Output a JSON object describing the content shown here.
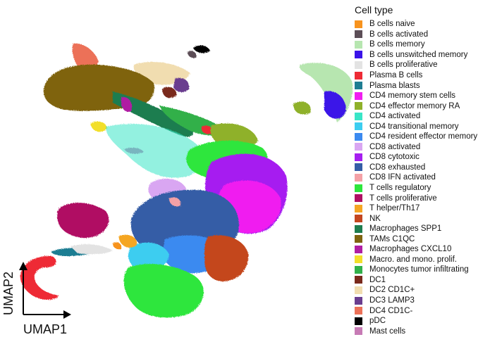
{
  "chart_data": {
    "type": "scatter",
    "title": "",
    "xlabel": "UMAP1",
    "ylabel": "UMAP2",
    "axis_ticks": "none",
    "grid": false,
    "legend_title": "Cell type",
    "legend_position": "right",
    "series": [
      {
        "name": "B cells naive",
        "color": "#f7931e"
      },
      {
        "name": "B cells activated",
        "color": "#5c4e57"
      },
      {
        "name": "B cells memory",
        "color": "#b7e6b0"
      },
      {
        "name": "B cells unswitched memory",
        "color": "#3a12e8"
      },
      {
        "name": "B cells proliferative",
        "color": "#e3e3e3"
      },
      {
        "name": "Plasma B cells",
        "color": "#ee2b35"
      },
      {
        "name": "Plasma blasts",
        "color": "#1f7d92"
      },
      {
        "name": "CD4 memory stem cells",
        "color": "#f01ef0"
      },
      {
        "name": "CD4 effector memory RA",
        "color": "#8fb12a"
      },
      {
        "name": "CD4 activated",
        "color": "#39e5c7"
      },
      {
        "name": "CD4 transitional memory",
        "color": "#3ccdf0"
      },
      {
        "name": "CD4 resident effector memory",
        "color": "#3b8af0"
      },
      {
        "name": "CD8 activated",
        "color": "#d9a6f2"
      },
      {
        "name": "CD8 cytotoxic",
        "color": "#a61ff0"
      },
      {
        "name": "CD8 exhausted",
        "color": "#355da6"
      },
      {
        "name": "CD8 IFN activated",
        "color": "#f4a1a6"
      },
      {
        "name": "T cells regulatory",
        "color": "#2de63c"
      },
      {
        "name": "T cells proliferative",
        "color": "#b01063"
      },
      {
        "name": "T helper/Th17",
        "color": "#f5a623"
      },
      {
        "name": "NK",
        "color": "#c4461f"
      },
      {
        "name": "Macrophages SPP1",
        "color": "#1e7d4f"
      },
      {
        "name": "TAMs C1QC",
        "color": "#7f6410"
      },
      {
        "name": "Macrophages CXCL10",
        "color": "#b01ea3"
      },
      {
        "name": "Macro. and mono. prolif.",
        "color": "#f2df2a"
      },
      {
        "name": "Monocytes tumor infiltrating",
        "color": "#31b04a"
      },
      {
        "name": "DC1",
        "color": "#7a2a1c"
      },
      {
        "name": "DC2 CD1C+",
        "color": "#f1ddb0"
      },
      {
        "name": "DC3 LAMP3",
        "color": "#6a3d8f"
      },
      {
        "name": "DC4 CD1C-",
        "color": "#ec7158"
      },
      {
        "name": "pDC",
        "color": "#000000"
      },
      {
        "name": "Mast cells",
        "color": "#c77bb5"
      }
    ]
  }
}
